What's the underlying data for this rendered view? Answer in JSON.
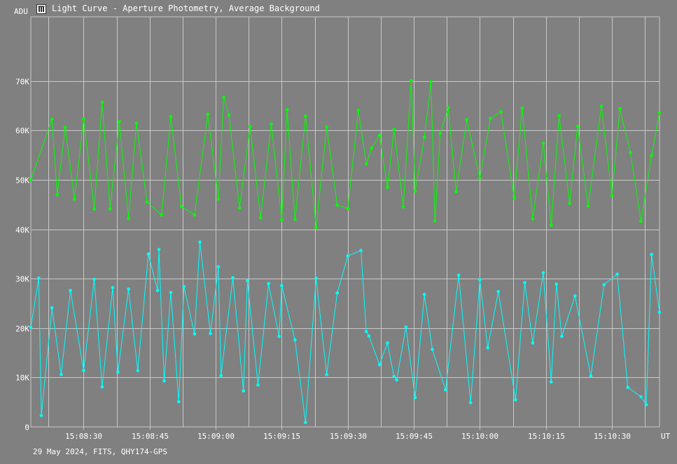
{
  "window": {
    "title": "Light Curve - Aperture Photometry, Average Background",
    "icon": "light-curve-app-icon"
  },
  "footer": {
    "info": "29 May 2024, FITS, QHY174-GPS"
  },
  "colors": {
    "background": "#808080",
    "grid": "#c8c8c8",
    "series_green": "#00ff00",
    "series_cyan": "#00ffff",
    "text": "#ffffff"
  },
  "chart_data": {
    "type": "line",
    "title": "",
    "ylabel": "ADU",
    "xlabel": "UT",
    "ylim": [
      0,
      83000
    ],
    "xlim_seconds": [
      13,
      251
    ],
    "grid": true,
    "legend": "none",
    "y_ticks": [
      {
        "value": 0,
        "label": "0"
      },
      {
        "value": 10000,
        "label": "10K"
      },
      {
        "value": 20000,
        "label": "20K"
      },
      {
        "value": 30000,
        "label": "30K"
      },
      {
        "value": 40000,
        "label": "40K"
      },
      {
        "value": 50000,
        "label": "50K"
      },
      {
        "value": 60000,
        "label": "60K"
      },
      {
        "value": 70000,
        "label": "70K"
      }
    ],
    "x_ticks": [
      {
        "seconds": 33,
        "label": "15:08:30"
      },
      {
        "seconds": 58,
        "label": "15:08:45"
      },
      {
        "seconds": 83,
        "label": "15:09:00"
      },
      {
        "seconds": 108,
        "label": "15:09:15"
      },
      {
        "seconds": 133,
        "label": "15:09:30"
      },
      {
        "seconds": 158,
        "label": "15:09:45"
      },
      {
        "seconds": 183,
        "label": "15:10:00"
      },
      {
        "seconds": 208,
        "label": "15:10:15"
      },
      {
        "seconds": 233,
        "label": "15:10:30"
      }
    ],
    "x_extra_gridlines_seconds": [
      19.5,
      45.5,
      70.5,
      95.5,
      120.5,
      145.5,
      170.5,
      195.5,
      220.5,
      245.5
    ],
    "series": [
      {
        "color": "#00ff00",
        "x": [
          13,
          21,
          23,
          26,
          29.5,
          33,
          37,
          40,
          43,
          46.5,
          50,
          53,
          57,
          62.5,
          66,
          70,
          75,
          80,
          84,
          86,
          88,
          92,
          96,
          100,
          104,
          108,
          110,
          113,
          117,
          121,
          125,
          129,
          133,
          137,
          140,
          142,
          145,
          148,
          150.5,
          154,
          157,
          158.5,
          162,
          164.5,
          166,
          168,
          171,
          174,
          178,
          183,
          187,
          191,
          196,
          199,
          203,
          207,
          210,
          213,
          217,
          220,
          224,
          229,
          233,
          236,
          240,
          244,
          248,
          251
        ],
        "values": [
          50000,
          62300,
          47000,
          60600,
          46100,
          62300,
          44100,
          65700,
          44100,
          61800,
          42200,
          61500,
          45500,
          42900,
          62800,
          44600,
          42900,
          63300,
          46100,
          66700,
          63100,
          44300,
          60800,
          42300,
          61300,
          41900,
          64200,
          42000,
          62900,
          40400,
          60700,
          44900,
          44200,
          64100,
          53200,
          56400,
          59000,
          48500,
          60200,
          44500,
          70100,
          47700,
          58600,
          69900,
          41700,
          59400,
          64600,
          47600,
          62200,
          50300,
          62400,
          63800,
          46300,
          64500,
          42100,
          57400,
          40800,
          63000,
          45200,
          60800,
          44700,
          64900,
          46800,
          64400,
          55500,
          41600,
          54900,
          63600
        ]
      },
      {
        "color": "#00ffff",
        "x": [
          13,
          16,
          17,
          21,
          24.5,
          28,
          33,
          37,
          40,
          44,
          46,
          50,
          53.5,
          57.5,
          61,
          61.5,
          63.5,
          66,
          69,
          71,
          75,
          77,
          81,
          84,
          85,
          89.5,
          93.5,
          95,
          99,
          103,
          107,
          108,
          113,
          117,
          121,
          125,
          129,
          133,
          138,
          140,
          141,
          145,
          148,
          150.5,
          151.5,
          155,
          158.5,
          162,
          165,
          170,
          175,
          179.5,
          183,
          186,
          190,
          196.5,
          200,
          203,
          207,
          210,
          212,
          214,
          219,
          225,
          230,
          235,
          239,
          244,
          246,
          248,
          251
        ],
        "values": [
          20200,
          30100,
          2300,
          24100,
          10600,
          27600,
          11400,
          29900,
          8100,
          28200,
          11100,
          27900,
          11400,
          35000,
          27600,
          35900,
          9300,
          27200,
          5100,
          28400,
          18800,
          37400,
          18900,
          32400,
          10400,
          30200,
          7300,
          29600,
          8500,
          29000,
          18300,
          28600,
          17600,
          900,
          30100,
          10600,
          27100,
          34600,
          35700,
          19300,
          18400,
          12600,
          17000,
          10200,
          9500,
          20200,
          5900,
          26800,
          15700,
          7500,
          30700,
          4900,
          29800,
          16000,
          27400,
          5500,
          29200,
          17000,
          31200,
          9100,
          28900,
          18300,
          26500,
          10300,
          28800,
          30900,
          8000,
          6100,
          4500,
          34900,
          23200
        ]
      }
    ]
  }
}
